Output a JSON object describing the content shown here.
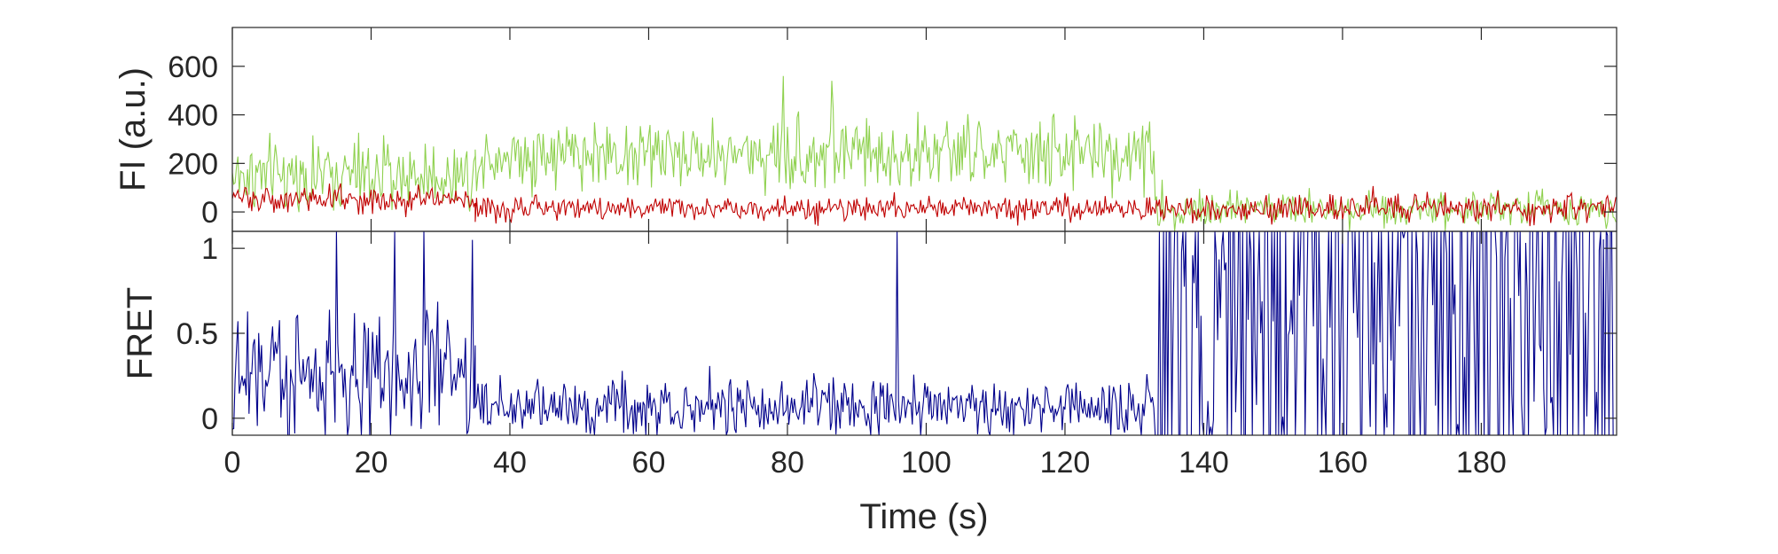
{
  "chart_data": [
    {
      "type": "line",
      "panel": "top",
      "ylabel": "FI (a.u.)",
      "xlim": [
        0,
        199.5
      ],
      "ylim": [
        -80,
        760
      ],
      "yticks": [
        0,
        200,
        400,
        600
      ],
      "ytick_labels": [
        "0",
        "200",
        "400",
        "600"
      ],
      "x_sample_step": 0.2,
      "series": [
        {
          "color": "#8fd14f",
          "segments": [
            {
              "x": [
                0,
                35
              ],
              "mean": 150,
              "noise": 70
            },
            {
              "x": [
                35,
                133
              ],
              "mean": 240,
              "noise": 75
            },
            {
              "x": [
                133,
                199.5
              ],
              "mean": 15,
              "noise": 40
            }
          ],
          "spikes": [
            {
              "x": 79.6,
              "y": 560
            },
            {
              "x": 86.5,
              "y": 540
            }
          ]
        },
        {
          "color": "#c00000",
          "segments": [
            {
              "x": [
                0,
                35
              ],
              "mean": 55,
              "noise": 30
            },
            {
              "x": [
                35,
                133
              ],
              "mean": 15,
              "noise": 25
            },
            {
              "x": [
                133,
                199.5
              ],
              "mean": 15,
              "noise": 28
            }
          ],
          "spikes": []
        }
      ]
    },
    {
      "type": "line",
      "panel": "bottom",
      "ylabel": "FRET",
      "xlabel": "Time (s)",
      "xlim": [
        0,
        199.5
      ],
      "ylim": [
        -0.1,
        1.1
      ],
      "yticks": [
        0,
        0.5,
        1
      ],
      "ytick_labels": [
        "0",
        "0.5",
        "1"
      ],
      "xticks": [
        0,
        20,
        40,
        60,
        80,
        100,
        120,
        140,
        160,
        180
      ],
      "xtick_labels": [
        "0",
        "20",
        "40",
        "60",
        "80",
        "100",
        "120",
        "140",
        "160",
        "180"
      ],
      "x_sample_step": 0.2,
      "series": [
        {
          "color": "#00008b",
          "segments": [
            {
              "x": [
                0,
                35
              ],
              "mean": 0.27,
              "noise": 0.2
            },
            {
              "x": [
                35,
                133
              ],
              "mean": 0.07,
              "noise": 0.09
            },
            {
              "x": [
                133,
                199.5
              ],
              "mean": 0.55,
              "noise": 0.5
            }
          ],
          "spikes": [
            {
              "x": 15,
              "y": 1.1
            },
            {
              "x": 23.4,
              "y": 1.1
            },
            {
              "x": 27.5,
              "y": 1.1
            },
            {
              "x": 34.5,
              "y": 1.05
            },
            {
              "x": 96,
              "y": 1.1
            }
          ]
        }
      ]
    }
  ]
}
